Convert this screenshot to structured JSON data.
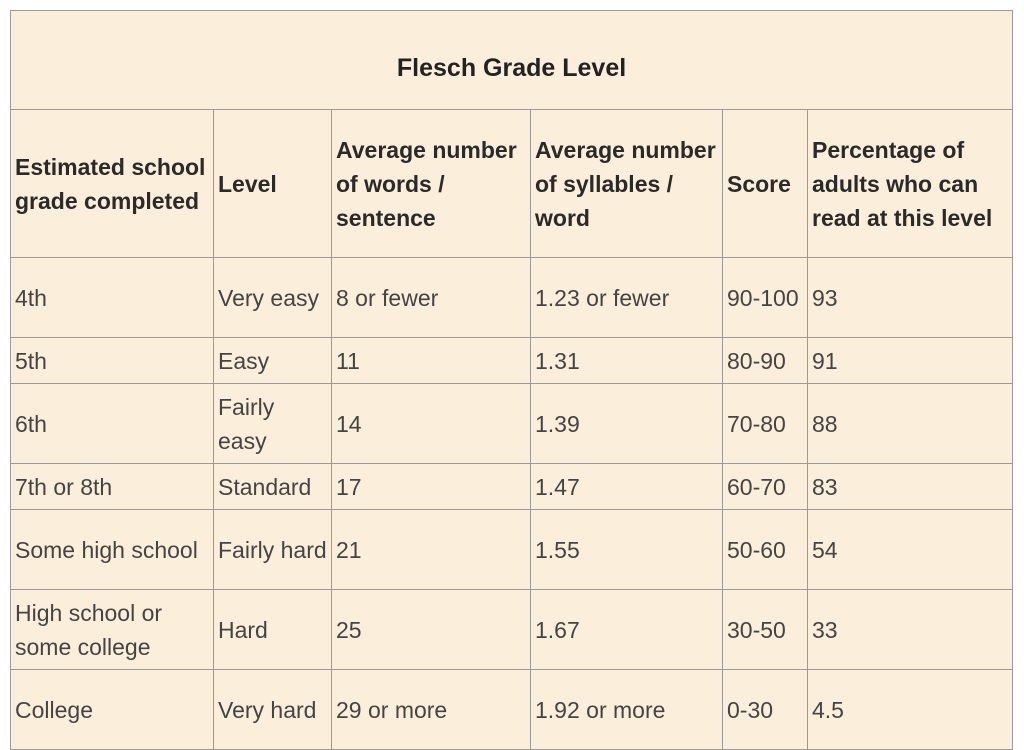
{
  "table": {
    "title": "Flesch Grade Level",
    "headers": [
      "Estimated school grade completed",
      "Level",
      "Average number of words / sentence",
      "Average number of syllables / word",
      "Score",
      "Percentage of adults who can read at this level"
    ],
    "rows": [
      [
        "4th",
        "Very easy",
        "8 or fewer",
        "1.23 or fewer",
        "90-100",
        "93"
      ],
      [
        "5th",
        "Easy",
        "11",
        "1.31",
        "80-90",
        "91"
      ],
      [
        "6th",
        "Fairly easy",
        "14",
        "1.39",
        "70-80",
        "88"
      ],
      [
        "7th or 8th",
        "Standard",
        "17",
        "1.47",
        "60-70",
        "83"
      ],
      [
        "Some high school",
        "Fairly hard",
        "21",
        "1.55",
        "50-60",
        "54"
      ],
      [
        "High school or some college",
        "Hard",
        "25",
        "1.67",
        "30-50",
        "33"
      ],
      [
        "College",
        "Very hard",
        "29 or more",
        "1.92 or more",
        "0-30",
        "4.5"
      ]
    ]
  }
}
